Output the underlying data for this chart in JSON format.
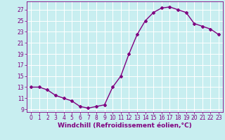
{
  "x": [
    0,
    1,
    2,
    3,
    4,
    5,
    6,
    7,
    8,
    9,
    10,
    11,
    12,
    13,
    14,
    15,
    16,
    17,
    18,
    19,
    20,
    21,
    22,
    23
  ],
  "y": [
    13,
    13,
    12.5,
    11.5,
    11,
    10.5,
    9.5,
    9.2,
    9.5,
    9.8,
    13,
    15,
    19,
    22.5,
    25,
    26.5,
    27.3,
    27.5,
    27,
    26.5,
    24.5,
    24,
    23.5,
    22.5
  ],
  "line_color": "#800080",
  "marker": "D",
  "marker_size": 2,
  "bg_color": "#c8eef0",
  "grid_color": "#ffffff",
  "xlabel": "Windchill (Refroidissement éolien,°C)",
  "ylim": [
    8.5,
    28.5
  ],
  "xlim": [
    -0.5,
    23.5
  ],
  "yticks": [
    9,
    11,
    13,
    15,
    17,
    19,
    21,
    23,
    25,
    27
  ],
  "xticks": [
    0,
    1,
    2,
    3,
    4,
    5,
    6,
    7,
    8,
    9,
    10,
    11,
    12,
    13,
    14,
    15,
    16,
    17,
    18,
    19,
    20,
    21,
    22,
    23
  ],
  "tick_fontsize": 5.5,
  "xlabel_fontsize": 6.5,
  "line_width": 1.0,
  "label_color": "#800080"
}
